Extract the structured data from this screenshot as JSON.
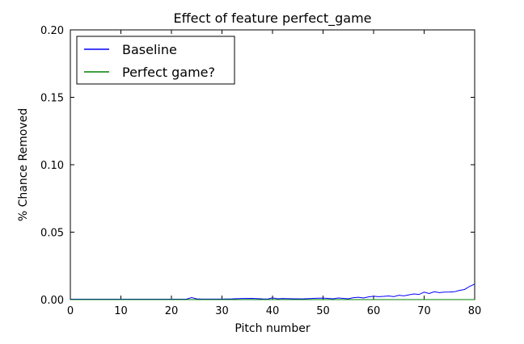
{
  "chart_data": {
    "type": "line",
    "title": "Effect of feature perfect_game",
    "xlabel": "Pitch number",
    "ylabel": "% Chance Removed",
    "xlim": [
      0,
      80
    ],
    "ylim": [
      0,
      0.2
    ],
    "xticks": [
      0,
      10,
      20,
      30,
      40,
      50,
      60,
      70,
      80
    ],
    "xtick_labels": [
      "0",
      "10",
      "20",
      "30",
      "40",
      "50",
      "60",
      "70",
      "80"
    ],
    "yticks": [
      0.0,
      0.05,
      0.1,
      0.15,
      0.2
    ],
    "ytick_labels": [
      "0.00",
      "0.05",
      "0.10",
      "0.15",
      "0.20"
    ],
    "grid": false,
    "legend_position": "top-left",
    "series": [
      {
        "name": "Baseline",
        "color": "#0000ff",
        "x": [
          0,
          2,
          4,
          6,
          8,
          10,
          12,
          14,
          16,
          18,
          20,
          22,
          23,
          24,
          25,
          26,
          28,
          30,
          32,
          34,
          36,
          38,
          39,
          40,
          41,
          42,
          44,
          46,
          48,
          50,
          52,
          53,
          54,
          55,
          56,
          57,
          58,
          59,
          60,
          61,
          62,
          63,
          64,
          65,
          66,
          67,
          68,
          69,
          70,
          71,
          72,
          73,
          74,
          75,
          76,
          77,
          78,
          79,
          80
        ],
        "y": [
          0.0003,
          0.0003,
          0.0003,
          0.0003,
          0.0003,
          0.0003,
          0.0003,
          0.0003,
          0.0003,
          0.0003,
          0.0003,
          0.0003,
          0.0004,
          0.0015,
          0.0005,
          0.0004,
          0.0004,
          0.0004,
          0.0005,
          0.0008,
          0.0009,
          0.0005,
          0.0004,
          0.0013,
          0.0006,
          0.0008,
          0.0006,
          0.0005,
          0.0009,
          0.0011,
          0.0006,
          0.0012,
          0.0009,
          0.0006,
          0.0014,
          0.0017,
          0.0012,
          0.002,
          0.0025,
          0.0022,
          0.0024,
          0.0027,
          0.0022,
          0.0032,
          0.0028,
          0.0035,
          0.0042,
          0.0038,
          0.0055,
          0.0045,
          0.0058,
          0.0052,
          0.0055,
          0.0056,
          0.0058,
          0.0068,
          0.0075,
          0.0098,
          0.0115
        ]
      },
      {
        "name": "Perfect game?",
        "color": "#008000",
        "x": [
          0,
          80
        ],
        "y": [
          0.0,
          0.0
        ]
      }
    ]
  }
}
